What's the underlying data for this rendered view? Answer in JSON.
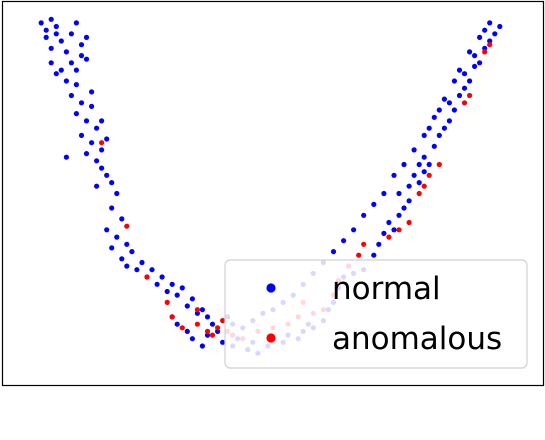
{
  "chart_data": {
    "type": "scatter",
    "title": "",
    "xlabel": "",
    "ylabel": "",
    "xlim": [
      0,
      100
    ],
    "ylim": [
      0,
      100
    ],
    "grid": false,
    "axis_ticks": false,
    "legend": {
      "placement": "bottom-right"
    },
    "series": [
      {
        "name": "normal",
        "color": "#0000ff",
        "points": [
          [
            4,
            97
          ],
          [
            5,
            95
          ],
          [
            6,
            98
          ],
          [
            7,
            96
          ],
          [
            5,
            93
          ],
          [
            8,
            92
          ],
          [
            10,
            94
          ],
          [
            11,
            97
          ],
          [
            12,
            91
          ],
          [
            13,
            93
          ],
          [
            9,
            89
          ],
          [
            10,
            86
          ],
          [
            12,
            88
          ],
          [
            11,
            84
          ],
          [
            13,
            87
          ],
          [
            8,
            84
          ],
          [
            6,
            86
          ],
          [
            7,
            83
          ],
          [
            9,
            81
          ],
          [
            11,
            80
          ],
          [
            10,
            77
          ],
          [
            12,
            75
          ],
          [
            14,
            74
          ],
          [
            11,
            72
          ],
          [
            13,
            70
          ],
          [
            15,
            68
          ],
          [
            12,
            66
          ],
          [
            14,
            64
          ],
          [
            16,
            62
          ],
          [
            17,
            65
          ],
          [
            9,
            60
          ],
          [
            13,
            61
          ],
          [
            15,
            59
          ],
          [
            16,
            57
          ],
          [
            17,
            55
          ],
          [
            18,
            53
          ],
          [
            15,
            52
          ],
          [
            19,
            50
          ],
          [
            18,
            46
          ],
          [
            20,
            43
          ],
          [
            17,
            40
          ],
          [
            19,
            38
          ],
          [
            21,
            36
          ],
          [
            18,
            35
          ],
          [
            22,
            34
          ],
          [
            20,
            32
          ],
          [
            21,
            30
          ],
          [
            23,
            29
          ],
          [
            24,
            31
          ],
          [
            26,
            29
          ],
          [
            25,
            27
          ],
          [
            27,
            25
          ],
          [
            28,
            27
          ],
          [
            30,
            25
          ],
          [
            29,
            23
          ],
          [
            31,
            22
          ],
          [
            32,
            24
          ],
          [
            34,
            21
          ],
          [
            33,
            19
          ],
          [
            35,
            17
          ],
          [
            36,
            18
          ],
          [
            37,
            16
          ],
          [
            38,
            14
          ],
          [
            30,
            16
          ],
          [
            31,
            14
          ],
          [
            33,
            12
          ],
          [
            34,
            10
          ],
          [
            36,
            8
          ],
          [
            37,
            11
          ],
          [
            39,
            12
          ],
          [
            40,
            9
          ],
          [
            42,
            8
          ],
          [
            43,
            10
          ],
          [
            45,
            7
          ],
          [
            46,
            9
          ],
          [
            47,
            6
          ],
          [
            49,
            8
          ],
          [
            50,
            10
          ],
          [
            52,
            9
          ],
          [
            53,
            11
          ],
          [
            55,
            10
          ],
          [
            56,
            12
          ],
          [
            57,
            14
          ],
          [
            58,
            13
          ],
          [
            60,
            15
          ],
          [
            61,
            18
          ],
          [
            62,
            20
          ],
          [
            63,
            24
          ],
          [
            64,
            27
          ],
          [
            65,
            30
          ],
          [
            66,
            28
          ],
          [
            68,
            29
          ],
          [
            70,
            33
          ],
          [
            71,
            36
          ],
          [
            72,
            39
          ],
          [
            73,
            42
          ],
          [
            74,
            40
          ],
          [
            75,
            44
          ],
          [
            76,
            46
          ],
          [
            77,
            48
          ],
          [
            75,
            50
          ],
          [
            77,
            52
          ],
          [
            78,
            55
          ],
          [
            79,
            53
          ],
          [
            80,
            56
          ],
          [
            79,
            58
          ],
          [
            81,
            58
          ],
          [
            80,
            60
          ],
          [
            82,
            63
          ],
          [
            83,
            66
          ],
          [
            84,
            68
          ],
          [
            85,
            70
          ],
          [
            86,
            73
          ],
          [
            85,
            75
          ],
          [
            87,
            77
          ],
          [
            88,
            79
          ],
          [
            89,
            81
          ],
          [
            88,
            83
          ],
          [
            90,
            85
          ],
          [
            91,
            86
          ],
          [
            90,
            88
          ],
          [
            92,
            90
          ],
          [
            93,
            92
          ],
          [
            94,
            94
          ],
          [
            95,
            96
          ],
          [
            93,
            97
          ],
          [
            92,
            95
          ],
          [
            91,
            93
          ],
          [
            89,
            89
          ],
          [
            87,
            84
          ],
          [
            86,
            81
          ],
          [
            84,
            76
          ],
          [
            83,
            73
          ],
          [
            82,
            71
          ],
          [
            81,
            68
          ],
          [
            80,
            66
          ],
          [
            78,
            62
          ],
          [
            76,
            58
          ],
          [
            74,
            55
          ],
          [
            72,
            50
          ],
          [
            70,
            47
          ],
          [
            68,
            44
          ],
          [
            66,
            40
          ],
          [
            64,
            37
          ],
          [
            62,
            34
          ],
          [
            60,
            31
          ],
          [
            58,
            28
          ],
          [
            56,
            25
          ],
          [
            54,
            22
          ],
          [
            52,
            20
          ],
          [
            50,
            18
          ],
          [
            48,
            17
          ],
          [
            46,
            15
          ],
          [
            44,
            13
          ],
          [
            42,
            14
          ],
          [
            41,
            16
          ],
          [
            6,
            90
          ],
          [
            7,
            94
          ],
          [
            14,
            78
          ],
          [
            16,
            70
          ]
        ]
      },
      {
        "name": "anomalous",
        "color": "#ff0000",
        "points": [
          [
            16,
            64
          ],
          [
            25,
            27
          ],
          [
            29,
            20
          ],
          [
            30,
            16
          ],
          [
            32,
            13
          ],
          [
            35,
            14
          ],
          [
            37,
            12
          ],
          [
            38,
            11
          ],
          [
            39,
            13
          ],
          [
            40,
            15
          ],
          [
            41,
            12
          ],
          [
            42,
            11
          ],
          [
            44,
            10
          ],
          [
            47,
            12
          ],
          [
            50,
            13
          ],
          [
            53,
            14
          ],
          [
            55,
            16
          ],
          [
            58,
            17
          ],
          [
            60,
            18
          ],
          [
            62,
            22
          ],
          [
            65,
            30
          ],
          [
            67,
            33
          ],
          [
            68,
            36
          ],
          [
            73,
            38
          ],
          [
            75,
            40
          ],
          [
            77,
            42
          ],
          [
            79,
            50
          ],
          [
            80,
            52
          ],
          [
            81,
            55
          ],
          [
            83,
            58
          ],
          [
            88,
            75
          ],
          [
            89,
            77
          ],
          [
            92,
            89
          ],
          [
            93,
            91
          ],
          [
            21,
            41
          ],
          [
            35,
            18
          ],
          [
            56,
            20
          ],
          [
            63,
            26
          ]
        ]
      }
    ]
  }
}
